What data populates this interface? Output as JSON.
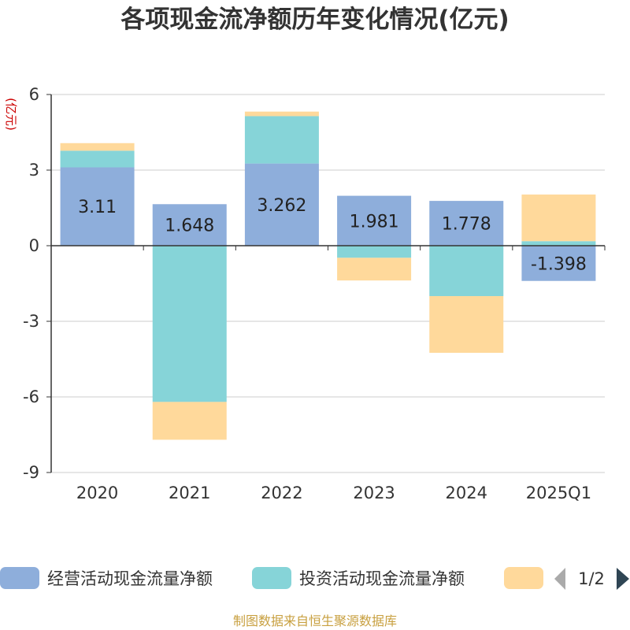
{
  "chart_data": {
    "type": "bar",
    "stacked": true,
    "title": "各项现金流净额历年变化情况(亿元)",
    "ylabel": "(亿元)",
    "categories": [
      "2020",
      "2021",
      "2022",
      "2023",
      "2024",
      "2025Q1"
    ],
    "ylim": [
      -9,
      6
    ],
    "yticks": [
      6,
      3,
      0,
      -3,
      -6,
      -9
    ],
    "series": [
      {
        "name": "经营活动现金流量净额",
        "color": "#8eaedb",
        "values": [
          3.11,
          1.648,
          3.262,
          1.981,
          1.778,
          -1.398
        ]
      },
      {
        "name": "投资活动现金流量净额",
        "color": "#86d4d8",
        "values": [
          0.66,
          -6.2,
          1.88,
          -0.48,
          -2.0,
          0.18
        ]
      },
      {
        "name": "",
        "color": "#ffd99b",
        "values": [
          0.3,
          -1.5,
          0.18,
          -0.9,
          -2.25,
          1.85
        ]
      }
    ],
    "data_labels": [
      "3.11",
      "1.648",
      "3.262",
      "1.981",
      "1.778",
      "-1.398"
    ],
    "legend": {
      "position": "bottom",
      "page": "1/2"
    }
  },
  "source": "制图数据来自恒生聚源数据库"
}
